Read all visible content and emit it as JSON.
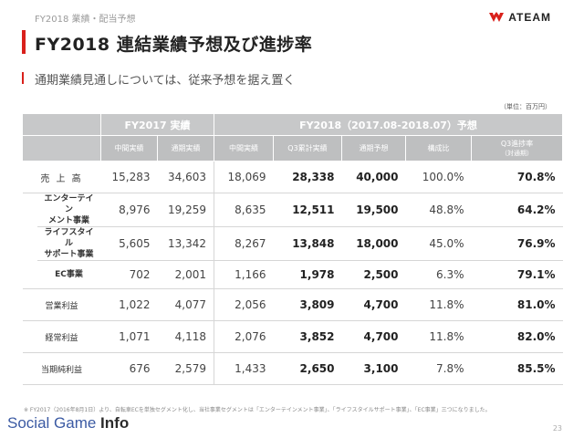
{
  "header": {
    "section": "FY2018 業績・配当予想",
    "title": "FY2018 連結業績予想及び進捗率",
    "subtitle": "通期業績見通しについては、従来予想を据え置く",
    "logo_text": "ATEAM"
  },
  "unit": "（単位：百万円）",
  "table": {
    "group_headers": [
      "FY2017 実績",
      "FY2018（2017.08-2018.07）予想"
    ],
    "sub_headers": [
      "中間実績",
      "通期実績",
      "中間実績",
      "Q3累計実績",
      "通期予想",
      "構成比",
      "Q3進捗率",
      "（対通期）"
    ],
    "rows": [
      {
        "label": "売 上 高",
        "values": [
          "15,283",
          "34,603",
          "18,069",
          "28,338",
          "40,000",
          "100.0%",
          "70.8%"
        ]
      },
      {
        "label": "エンターテイン\nメント事業",
        "values": [
          "8,976",
          "19,259",
          "8,635",
          "12,511",
          "19,500",
          "48.8%",
          "64.2%"
        ]
      },
      {
        "label": "ライフスタイル\nサポート事業",
        "values": [
          "5,605",
          "13,342",
          "8,267",
          "13,848",
          "18,000",
          "45.0%",
          "76.9%"
        ]
      },
      {
        "label": "EC事業",
        "values": [
          "702",
          "2,001",
          "1,166",
          "1,978",
          "2,500",
          "6.3%",
          "79.1%"
        ]
      },
      {
        "label": "営業利益",
        "values": [
          "1,022",
          "4,077",
          "2,056",
          "3,809",
          "4,700",
          "11.8%",
          "81.0%"
        ]
      },
      {
        "label": "経常利益",
        "values": [
          "1,071",
          "4,118",
          "2,076",
          "3,852",
          "4,700",
          "11.8%",
          "82.0%"
        ]
      },
      {
        "label": "当期純利益",
        "values": [
          "676",
          "2,579",
          "1,433",
          "2,650",
          "3,100",
          "7.8%",
          "85.5%"
        ]
      }
    ]
  },
  "footnote": "※ FY2017（2016年8月1日）より、自転車ECを単独セグメント化し、当社事業セグメントは「エンターテインメント事業」、「ライフスタイルサポート事業」、「EC事業」三つになりました。",
  "watermark": {
    "part1": "Social Game ",
    "part2": "Info"
  },
  "page_number": "23",
  "colors": {
    "accent": "#d9201b",
    "header_bg": "#c7c8c9"
  }
}
